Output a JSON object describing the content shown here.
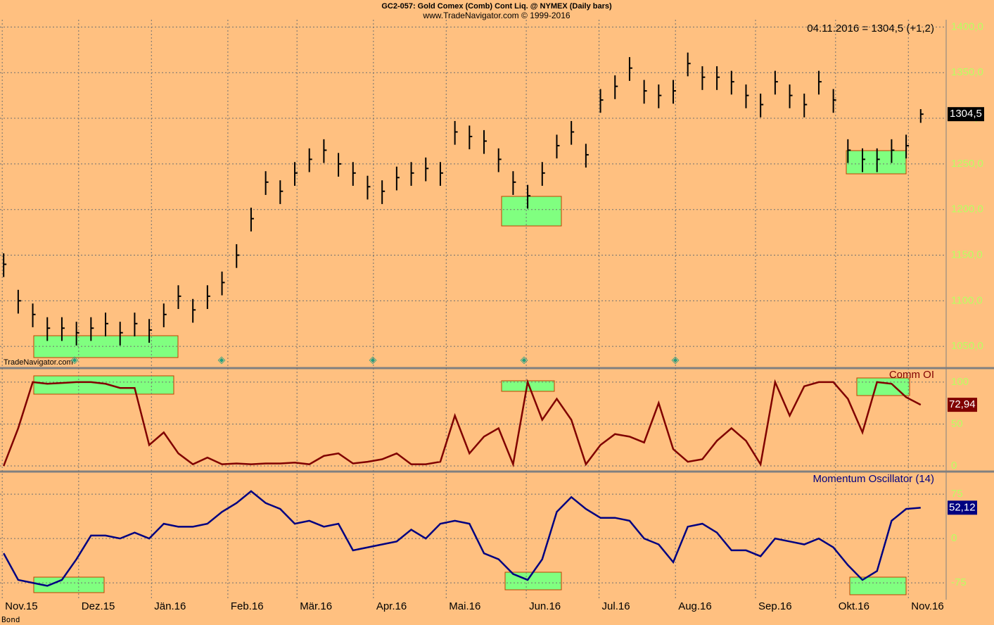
{
  "chart_data": [
    {
      "type": "ohlc",
      "title": "GC2-057:  Gold Comex (Comb) Cont Liq. @ NYMEX  (Daily bars)",
      "subtitle": "www.TradeNavigator.com © 1999-2016",
      "annotation": "04.11.2016 = 1304,5 (+1,2)",
      "watermark": "TradeNavigator.com",
      "footer": "Bond",
      "last_label": "1304,5",
      "color": "#000000",
      "x": [
        0,
        4,
        8,
        12,
        16,
        20,
        24,
        28,
        32,
        36,
        40,
        44,
        48,
        52,
        56,
        60,
        64,
        68,
        72,
        76,
        80,
        84,
        88,
        92,
        96,
        100,
        104,
        108,
        112,
        116,
        120,
        124,
        128,
        132,
        136,
        140,
        144,
        148,
        152,
        156,
        160,
        164,
        168,
        172,
        176,
        180,
        184,
        188,
        192,
        196,
        200,
        204,
        208,
        212,
        216,
        220,
        224,
        228,
        232,
        236,
        240,
        244,
        248,
        252
      ],
      "high": [
        1152,
        1112,
        1097,
        1082,
        1082,
        1077,
        1082,
        1087,
        1077,
        1087,
        1080,
        1097,
        1117,
        1102,
        1117,
        1132,
        1162,
        1202,
        1242,
        1232,
        1252,
        1267,
        1277,
        1262,
        1252,
        1237,
        1232,
        1247,
        1252,
        1257,
        1252,
        1297,
        1292,
        1287,
        1267,
        1242,
        1227,
        1252,
        1282,
        1297,
        1272,
        1332,
        1347,
        1367,
        1342,
        1337,
        1342,
        1372,
        1357,
        1357,
        1352,
        1337,
        1327,
        1352,
        1337,
        1327,
        1352,
        1332,
        1277,
        1267,
        1267,
        1277,
        1282,
        1310
      ],
      "low": [
        1126,
        1086,
        1071,
        1056,
        1056,
        1051,
        1056,
        1061,
        1051,
        1061,
        1054,
        1071,
        1091,
        1076,
        1091,
        1106,
        1136,
        1176,
        1216,
        1206,
        1226,
        1241,
        1251,
        1236,
        1226,
        1211,
        1206,
        1221,
        1226,
        1231,
        1226,
        1271,
        1266,
        1261,
        1241,
        1216,
        1201,
        1226,
        1256,
        1271,
        1246,
        1306,
        1321,
        1341,
        1316,
        1311,
        1316,
        1346,
        1331,
        1331,
        1326,
        1311,
        1301,
        1326,
        1311,
        1301,
        1326,
        1306,
        1251,
        1241,
        1241,
        1251,
        1256,
        1295
      ],
      "close": [
        1140,
        1100,
        1085,
        1070,
        1070,
        1065,
        1070,
        1075,
        1065,
        1075,
        1068,
        1085,
        1105,
        1090,
        1105,
        1120,
        1150,
        1190,
        1230,
        1220,
        1240,
        1255,
        1265,
        1250,
        1240,
        1225,
        1220,
        1235,
        1240,
        1245,
        1240,
        1285,
        1280,
        1275,
        1255,
        1230,
        1215,
        1240,
        1270,
        1285,
        1260,
        1320,
        1335,
        1355,
        1330,
        1325,
        1330,
        1360,
        1345,
        1345,
        1340,
        1325,
        1315,
        1340,
        1325,
        1315,
        1340,
        1320,
        1265,
        1255,
        1255,
        1265,
        1270,
        1304.5
      ],
      "xlim": [
        -1,
        259
      ],
      "xticks": [
        {
          "value": 0,
          "label": "Nov.15"
        },
        {
          "value": 21,
          "label": "Dez.15"
        },
        {
          "value": 41,
          "label": "Jän.16"
        },
        {
          "value": 62,
          "label": "Feb.16"
        },
        {
          "value": 81,
          "label": "Mär.16"
        },
        {
          "value": 102,
          "label": "Apr.16"
        },
        {
          "value": 122,
          "label": "Mai.16"
        },
        {
          "value": 144,
          "label": "Jun.16"
        },
        {
          "value": 164,
          "label": "Jul.16"
        },
        {
          "value": 185,
          "label": "Aug.16"
        },
        {
          "value": 207,
          "label": "Sep.16"
        },
        {
          "value": 229,
          "label": "Okt.16"
        },
        {
          "value": 249,
          "label": "Nov.16"
        }
      ],
      "ylim": [
        1027,
        1408
      ],
      "yticks": [
        {
          "value": 1050,
          "label": "1050,0"
        },
        {
          "value": 1100,
          "label": "1100,0"
        },
        {
          "value": 1150,
          "label": "1150,0"
        },
        {
          "value": 1200,
          "label": "1200,0"
        },
        {
          "value": 1250,
          "label": "1250,0"
        },
        {
          "value": 1300,
          "label": "1300,0"
        },
        {
          "value": 1350,
          "label": "1350,0"
        },
        {
          "value": 1400,
          "label": "1400,0"
        }
      ]
    },
    {
      "type": "line",
      "title": "Comm OI",
      "color": "#800000",
      "last_label": "72,94",
      "values": [
        0,
        45,
        100,
        98,
        99,
        100,
        100,
        98,
        93,
        93,
        25,
        40,
        15,
        2,
        10,
        2,
        3,
        2,
        3,
        3,
        4,
        2,
        12,
        15,
        3,
        5,
        8,
        15,
        2,
        2,
        5,
        60,
        15,
        35,
        45,
        2,
        100,
        55,
        80,
        55,
        2,
        25,
        38,
        35,
        28,
        75,
        20,
        5,
        8,
        30,
        45,
        30,
        2,
        100,
        60,
        95,
        100,
        100,
        80,
        40,
        100,
        98,
        82,
        72.94
      ],
      "ylim": [
        -5,
        115
      ],
      "yticks": [
        0,
        50,
        100
      ]
    },
    {
      "type": "line",
      "title": "Momentum Oscillator (14)",
      "color": "#000080",
      "last_label": "52,12",
      "values": [
        -25,
        -70,
        -75,
        -80,
        -70,
        -35,
        5,
        5,
        0,
        10,
        0,
        25,
        20,
        20,
        25,
        45,
        60,
        80,
        60,
        50,
        25,
        30,
        20,
        25,
        -20,
        -15,
        -10,
        -5,
        15,
        0,
        25,
        30,
        25,
        -25,
        -35,
        -60,
        -70,
        -35,
        45,
        70,
        50,
        35,
        35,
        30,
        0,
        -10,
        -40,
        20,
        25,
        10,
        -20,
        -20,
        -30,
        0,
        -5,
        -10,
        0,
        -15,
        -45,
        -70,
        -55,
        30,
        50,
        52.12
      ],
      "ylim": [
        -101,
        112
      ],
      "yticks": [
        -75,
        0,
        75
      ]
    }
  ]
}
